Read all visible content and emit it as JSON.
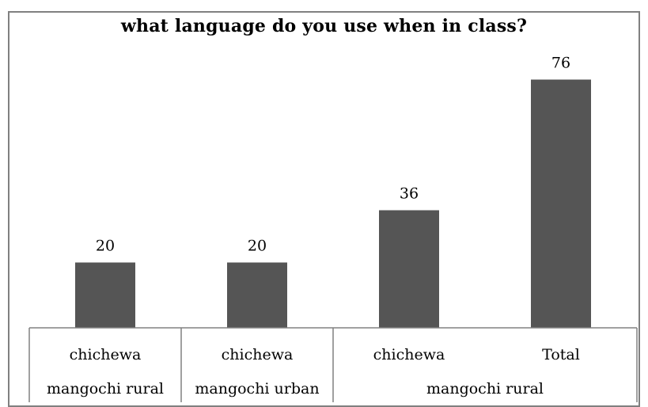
{
  "chart_data": {
    "type": "bar",
    "title": "what language do you use when in class?",
    "categories": [
      {
        "label": "chichewa",
        "group": "mangochi rural"
      },
      {
        "label": "chichewa",
        "group": "mangochi urban"
      },
      {
        "label": "chichewa",
        "group": "mangochi rural"
      },
      {
        "label": "Total",
        "group": "mangochi rural"
      }
    ],
    "groups": [
      "mangochi rural",
      "mangochi urban",
      "mangochi rural"
    ],
    "values": [
      20,
      20,
      36,
      76
    ],
    "data_labels": [
      "20",
      "20",
      "36",
      "76"
    ],
    "bar_color": "#555555",
    "ylim": [
      0,
      80
    ],
    "grid": false,
    "legend": "none"
  }
}
